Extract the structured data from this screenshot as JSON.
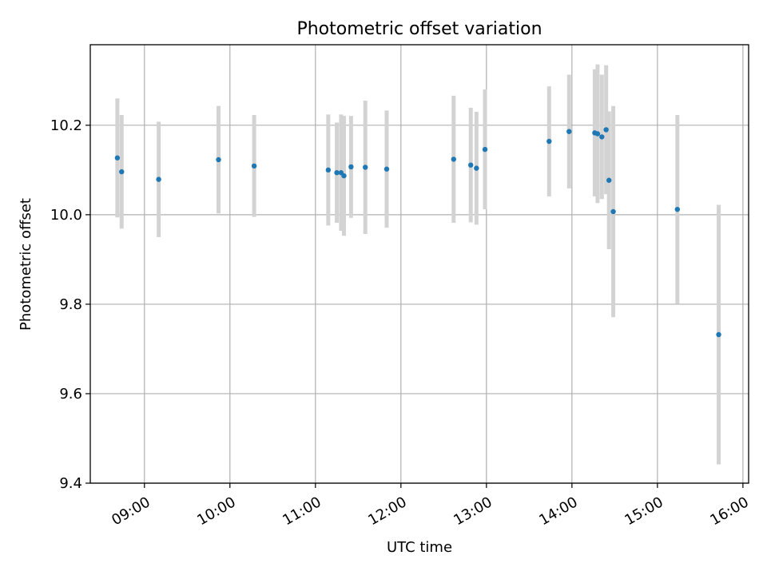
{
  "chart_data": {
    "type": "scatter",
    "title": "Photometric offset variation",
    "xlabel": "UTC time",
    "ylabel": "Photometric offset",
    "xlim": [
      "08:22",
      "16:04"
    ],
    "ylim": [
      9.4,
      10.38
    ],
    "grid": true,
    "x_ticks": [
      "09:00",
      "10:00",
      "11:00",
      "12:00",
      "13:00",
      "14:00",
      "15:00",
      "16:00"
    ],
    "y_ticks": [
      "9.4",
      "9.6",
      "9.8",
      "10.0",
      "10.2"
    ],
    "errorbar_color": "#d3d3d3",
    "point_color": "#1f77b4",
    "series": [
      {
        "points": [
          {
            "x": "08:41",
            "y": 10.127,
            "yerr": 0.133
          },
          {
            "x": "08:44",
            "y": 10.096,
            "yerr": 0.127
          },
          {
            "x": "09:10",
            "y": 10.079,
            "yerr": 0.129
          },
          {
            "x": "09:52",
            "y": 10.123,
            "yerr": 0.12
          },
          {
            "x": "10:17",
            "y": 10.109,
            "yerr": 0.114
          },
          {
            "x": "11:09",
            "y": 10.1,
            "yerr": 0.124
          },
          {
            "x": "11:15",
            "y": 10.094,
            "yerr": 0.112
          },
          {
            "x": "11:18",
            "y": 10.094,
            "yerr": 0.13
          },
          {
            "x": "11:20",
            "y": 10.087,
            "yerr": 0.134
          },
          {
            "x": "11:25",
            "y": 10.107,
            "yerr": 0.114
          },
          {
            "x": "11:35",
            "y": 10.106,
            "yerr": 0.149
          },
          {
            "x": "11:50",
            "y": 10.102,
            "yerr": 0.131
          },
          {
            "x": "12:37",
            "y": 10.124,
            "yerr": 0.142
          },
          {
            "x": "12:49",
            "y": 10.111,
            "yerr": 0.128
          },
          {
            "x": "12:53",
            "y": 10.104,
            "yerr": 0.126
          },
          {
            "x": "12:59",
            "y": 10.146,
            "yerr": 0.134
          },
          {
            "x": "13:44",
            "y": 10.164,
            "yerr": 0.123
          },
          {
            "x": "13:58",
            "y": 10.186,
            "yerr": 0.127
          },
          {
            "x": "14:16",
            "y": 10.183,
            "yerr": 0.142
          },
          {
            "x": "14:18",
            "y": 10.181,
            "yerr": 0.155
          },
          {
            "x": "14:21",
            "y": 10.174,
            "yerr": 0.139
          },
          {
            "x": "14:24",
            "y": 10.19,
            "yerr": 0.144
          },
          {
            "x": "14:26",
            "y": 10.077,
            "yerr": 0.154
          },
          {
            "x": "14:29",
            "y": 10.007,
            "yerr": 0.236
          },
          {
            "x": "15:14",
            "y": 10.012,
            "yerr": 0.211
          },
          {
            "x": "15:43",
            "y": 9.732,
            "yerr": 0.29
          }
        ]
      }
    ]
  }
}
